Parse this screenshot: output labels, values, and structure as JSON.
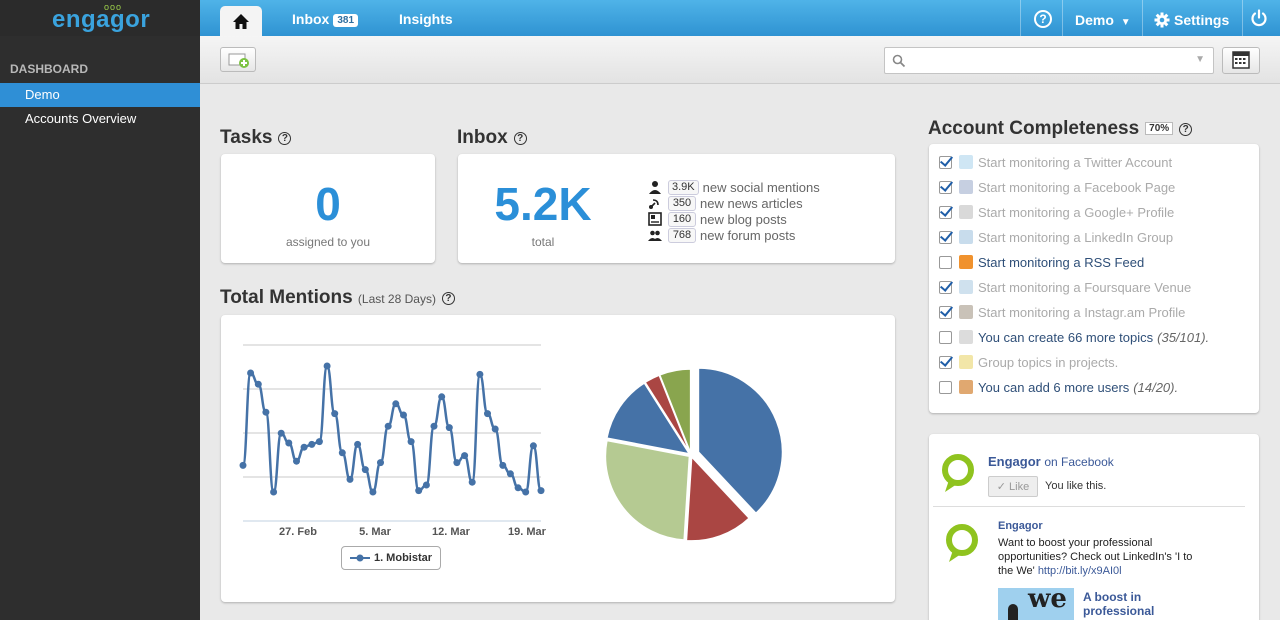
{
  "app": {
    "logo": "engagor",
    "logo_dots": "ooo"
  },
  "topnav": {
    "home_icon": "home-icon",
    "inbox_label": "Inbox",
    "inbox_count": "381",
    "insights_label": "Insights",
    "help_icon": "help-icon",
    "help_glyph": "?",
    "account_label": "Demo",
    "settings_label": "Settings",
    "power_icon": "power-icon"
  },
  "sidebar": {
    "section_title": "DASHBOARD",
    "items": [
      {
        "label": "Demo",
        "active": true
      },
      {
        "label": "Accounts Overview",
        "active": false
      }
    ]
  },
  "toolbar": {
    "search_placeholder": "",
    "calendar_icon": "calendar-icon",
    "add_icon": "add-widget-icon"
  },
  "tasks": {
    "title": "Tasks",
    "help": "?",
    "value": "0",
    "caption": "assigned to you"
  },
  "inbox": {
    "title": "Inbox",
    "help": "?",
    "value": "5.2K",
    "caption": "total",
    "stats": [
      {
        "icon": "person-icon",
        "count": "3.9K",
        "label": "new social mentions"
      },
      {
        "icon": "satellite-icon",
        "count": "350",
        "label": "new news articles"
      },
      {
        "icon": "blog-icon",
        "count": "160",
        "label": "new blog posts"
      },
      {
        "icon": "forum-icon",
        "count": "768",
        "label": "new forum posts"
      }
    ]
  },
  "mentions": {
    "title": "Total Mentions",
    "subtitle": "(Last 28 Days)",
    "help": "?"
  },
  "chart_data": [
    {
      "type": "line",
      "title": "",
      "xlabel": "",
      "ylabel": "",
      "x_ticks": [
        "27. Feb",
        "5. Mar",
        "12. Mar",
        "19. Mar"
      ],
      "legend": "bottom",
      "grid": true,
      "series": [
        {
          "name": "1. Mobistar",
          "color": "#4572a7",
          "values": [
            0.24,
            0.9,
            0.82,
            0.62,
            0.05,
            0.47,
            0.4,
            0.27,
            0.37,
            0.39,
            0.41,
            0.95,
            0.61,
            0.33,
            0.14,
            0.39,
            0.21,
            0.05,
            0.26,
            0.52,
            0.68,
            0.6,
            0.41,
            0.06,
            0.1,
            0.52,
            0.73,
            0.51,
            0.26,
            0.31,
            0.12,
            0.89,
            0.61,
            0.5,
            0.24,
            0.18,
            0.08,
            0.05,
            0.38,
            0.06
          ]
        }
      ]
    },
    {
      "type": "pie",
      "title": "",
      "legend": "none",
      "slices": [
        {
          "value": 38,
          "color": "#4572a7"
        },
        {
          "value": 13,
          "color": "#aa4643"
        },
        {
          "value": 27,
          "color": "#b5ca92"
        },
        {
          "value": 13,
          "color": "#4572a7"
        },
        {
          "value": 3,
          "color": "#aa4643"
        },
        {
          "value": 6,
          "color": "#89a54e"
        }
      ]
    }
  ],
  "completeness": {
    "title": "Account Completeness",
    "percent": "70%",
    "help": "?",
    "items": [
      {
        "checked": true,
        "icon": "twitter-icon",
        "label": "Start monitoring a Twitter Account",
        "extra": ""
      },
      {
        "checked": true,
        "icon": "facebook-icon",
        "label": "Start monitoring a Facebook Page",
        "extra": ""
      },
      {
        "checked": true,
        "icon": "googleplus-icon",
        "label": "Start monitoring a Google+ Profile",
        "extra": ""
      },
      {
        "checked": true,
        "icon": "linkedin-icon",
        "label": "Start monitoring a LinkedIn Group",
        "extra": ""
      },
      {
        "checked": false,
        "icon": "rss-icon",
        "label": "Start monitoring a RSS Feed",
        "extra": ""
      },
      {
        "checked": true,
        "icon": "foursquare-icon",
        "label": "Start monitoring a Foursquare Venue",
        "extra": ""
      },
      {
        "checked": true,
        "icon": "instagram-icon",
        "label": "Start monitoring a Instagr.am Profile",
        "extra": ""
      },
      {
        "checked": false,
        "icon": "topic-add-icon",
        "label": "You can create 66 more topics",
        "extra": "(35/101)."
      },
      {
        "checked": true,
        "icon": "folder-icon",
        "label": "Group topics in projects.",
        "extra": ""
      },
      {
        "checked": false,
        "icon": "user-add-icon",
        "label": "You can add 6 more users",
        "extra": "(14/20)."
      }
    ]
  },
  "facebook": {
    "page_name": "Engagor",
    "on_label": "on Facebook",
    "like_label": "Like",
    "like_status": "You like this.",
    "post_author": "Engagor",
    "post_text": "Want to boost your professional opportunities? Check out LinkedIn's 'I to the We'",
    "post_link": "http://bit.ly/x9AI0l",
    "thumb_text": "we",
    "link_title": "A boost in professional"
  }
}
